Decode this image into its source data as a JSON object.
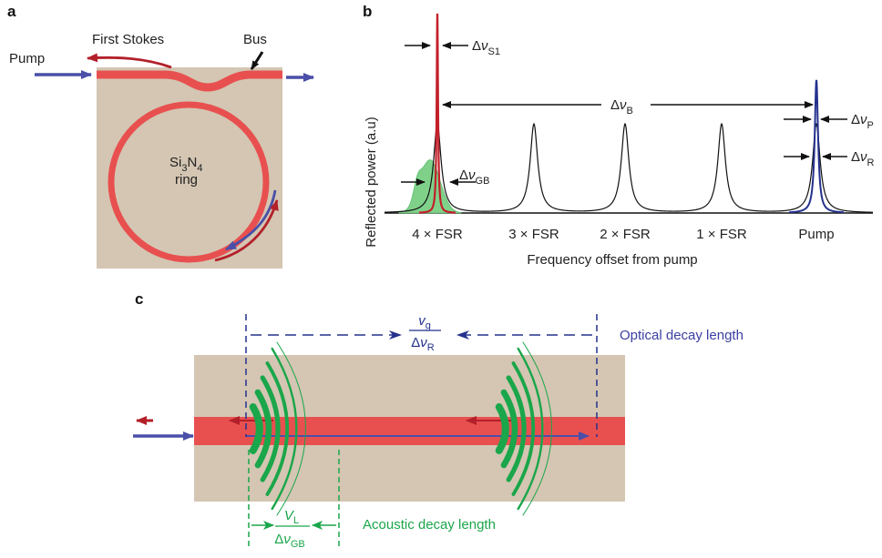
{
  "colors": {
    "beige": "#d4c6b2",
    "red": "#e85050",
    "darkred": "#b3202a",
    "blue": "#4a4fa8",
    "navy": "#23318c",
    "green": "#1aa64a",
    "lightgreen": "#7fd18a"
  },
  "panel_a": {
    "letter": "a",
    "pump": "Pump",
    "first_stokes": "First Stokes",
    "bus": "Bus",
    "ring_material": "Si",
    "ring_sub1": "3",
    "ring_mid": "N",
    "ring_sub2": "4",
    "ring_word": "ring"
  },
  "panel_b": {
    "letter": "b",
    "ylabel": "Reflected power (a.u)",
    "xlabel": "Frequency offset from pump",
    "delta": "Δ",
    "nu": "ν",
    "sub_s1": "S1",
    "sub_b": "B",
    "sub_p": "P",
    "sub_r": "R",
    "sub_gb": "GB"
  },
  "chart_data": {
    "type": "line",
    "categories": [
      "4 × FSR",
      "3 × FSR",
      "2 × FSR",
      "1 × FSR",
      "Pump"
    ],
    "series": [
      {
        "kind": "cavity-resonances",
        "values": [
          1,
          1,
          1,
          1,
          1
        ]
      },
      {
        "kind": "stokes-line",
        "position": "4 × FSR",
        "value": 2.25
      },
      {
        "kind": "pump-line",
        "position": "Pump",
        "value": 1.5
      },
      {
        "kind": "brillouin-gain",
        "position": "4 × FSR",
        "value": 0.6
      }
    ]
  },
  "panel_c": {
    "letter": "c",
    "optical_numerator": "v",
    "optical_num_sub": "g",
    "optical_den_delta": "Δ",
    "optical_den_nu": "ν",
    "optical_den_sub": "R",
    "optical_label": "Optical decay length",
    "acoustic_numerator": "V",
    "acoustic_num_sub": "L",
    "acoustic_den_delta": "Δ",
    "acoustic_den_nu": "ν",
    "acoustic_den_sub": "GB",
    "acoustic_label": "Acoustic decay length"
  }
}
